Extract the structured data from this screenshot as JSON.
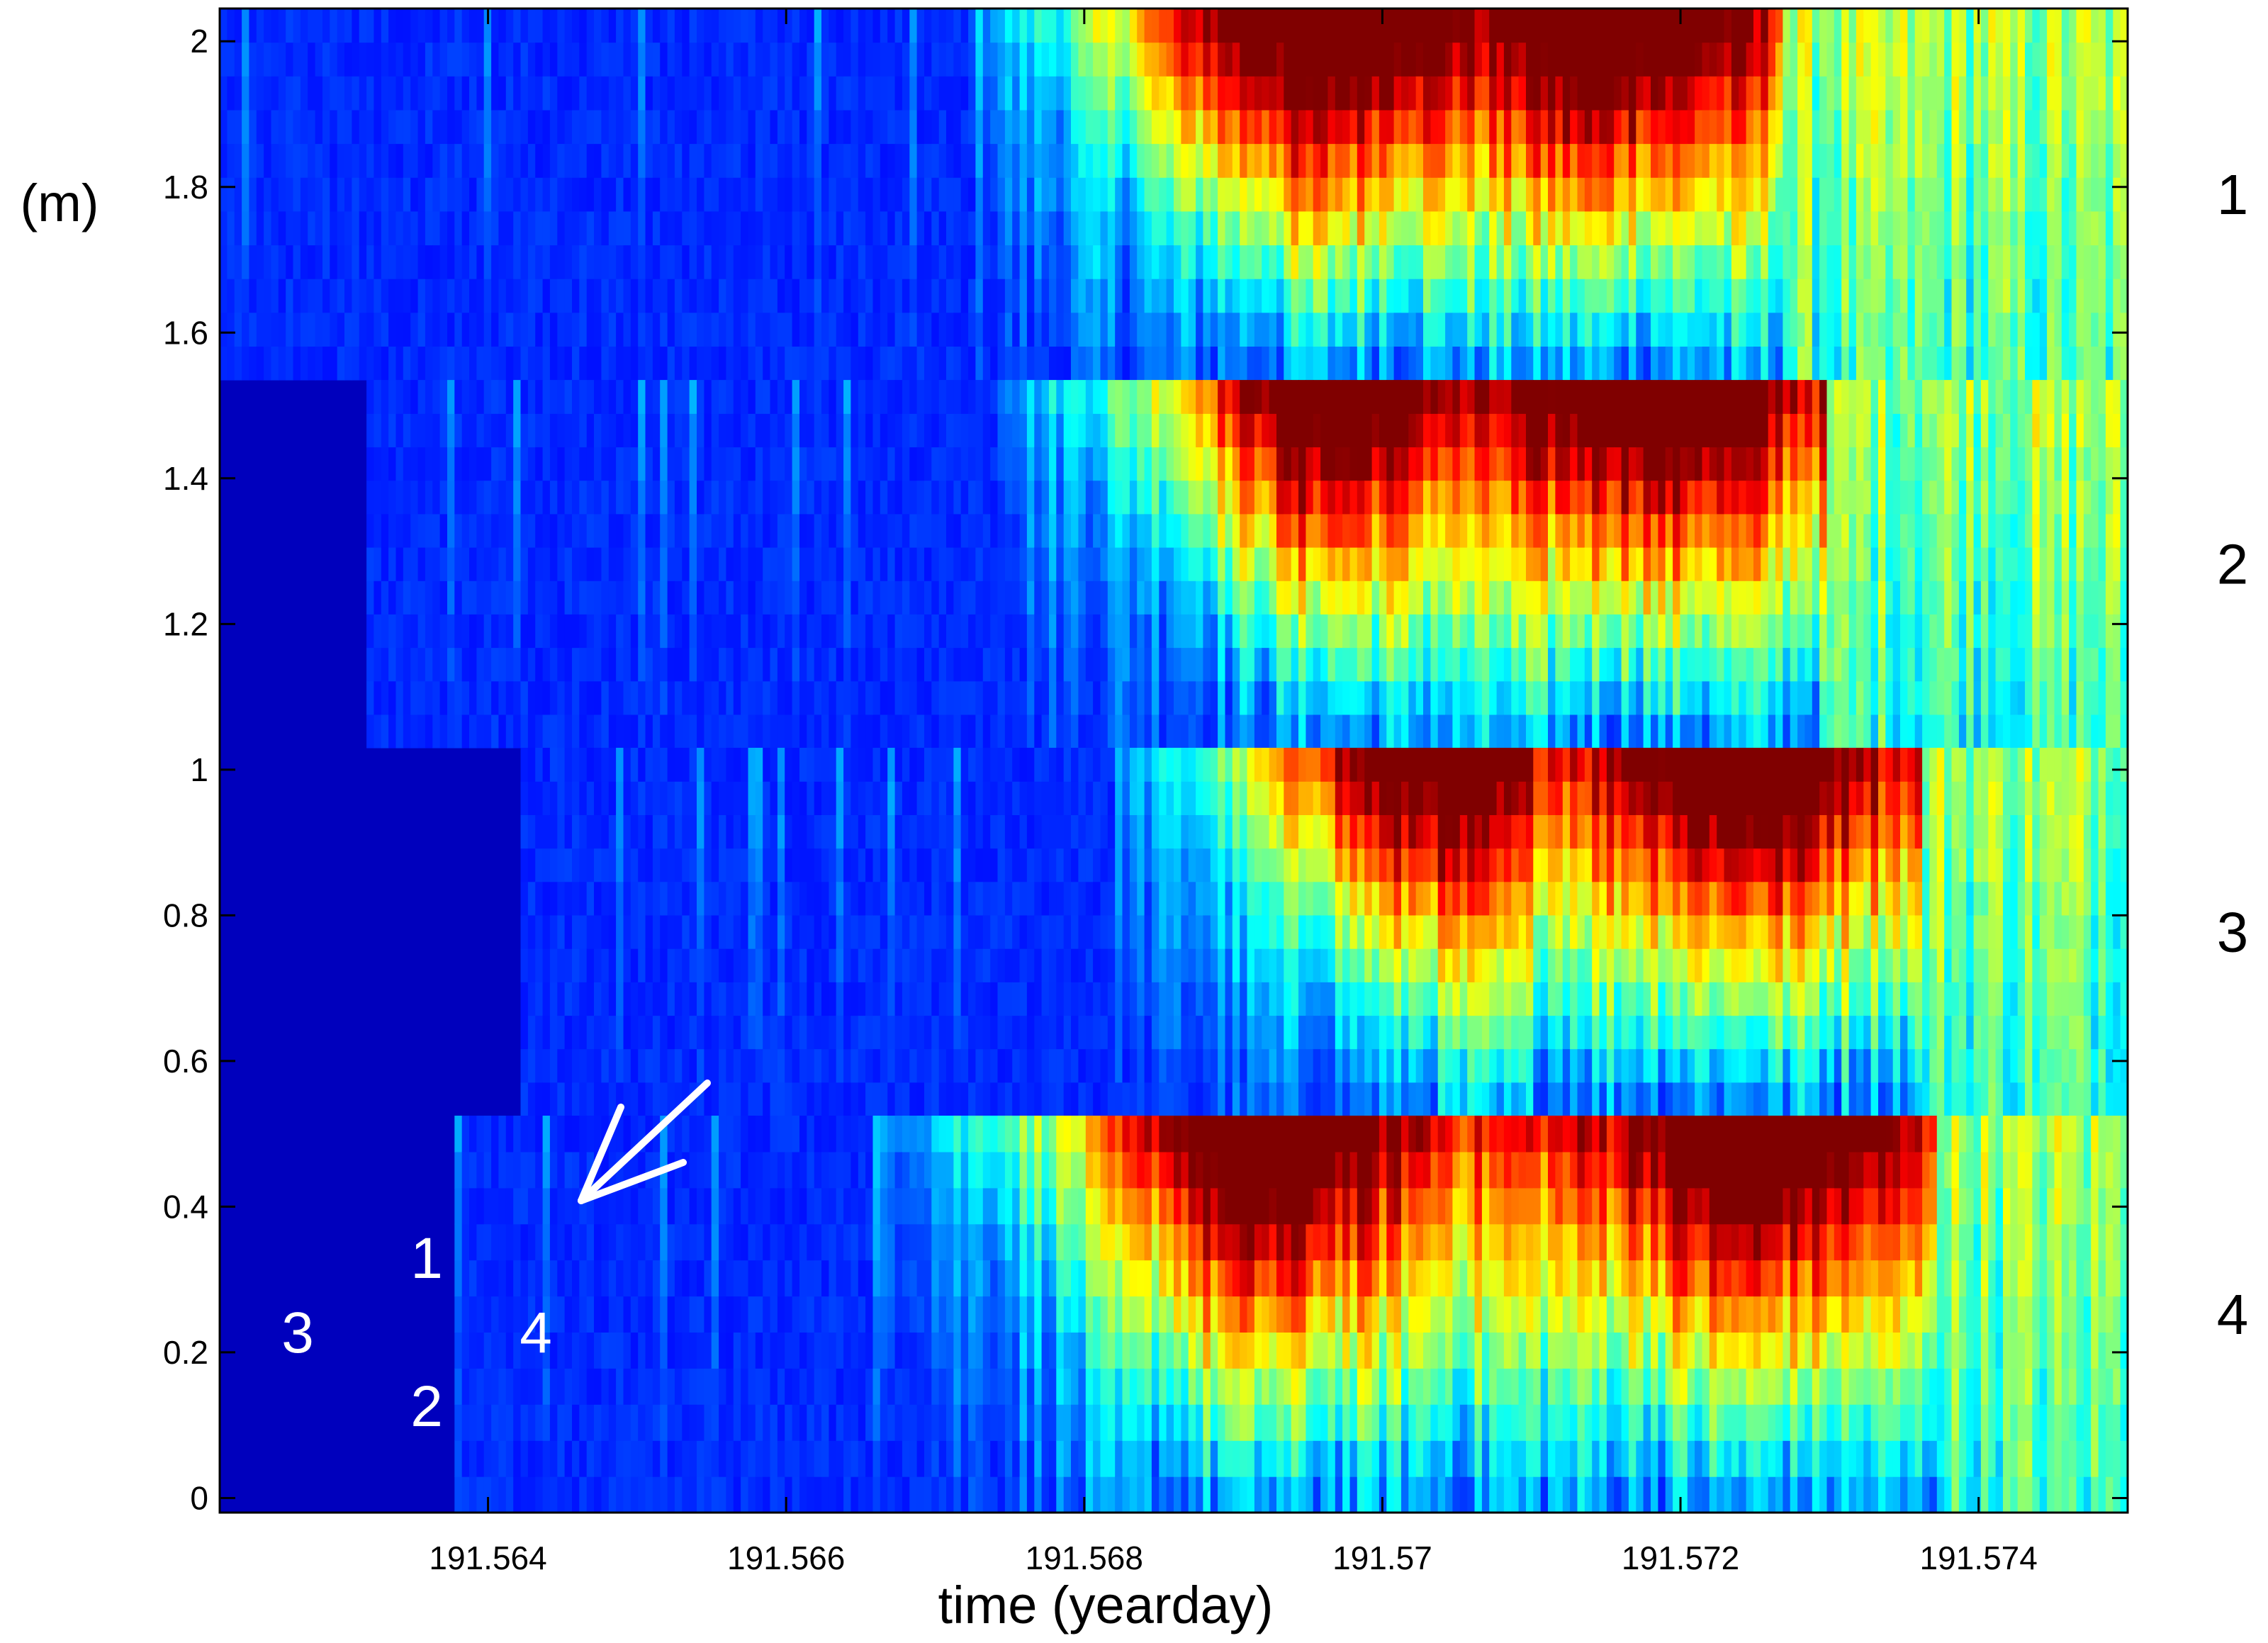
{
  "chart_data": {
    "type": "heatmap",
    "title": "",
    "xlabel": "time (yearday)",
    "ylabel": "(m)",
    "xlim": [
      191.5622,
      191.575
    ],
    "ylim": [
      -0.02,
      2.045
    ],
    "x_ticks": [
      {
        "value": 191.564,
        "label": "191.564"
      },
      {
        "value": 191.566,
        "label": "191.566"
      },
      {
        "value": 191.568,
        "label": "191.568"
      },
      {
        "value": 191.57,
        "label": "191.57"
      },
      {
        "value": 191.572,
        "label": "191.572"
      },
      {
        "value": 191.574,
        "label": "191.574"
      }
    ],
    "y_ticks": [
      {
        "value": 0,
        "label": "0"
      },
      {
        "value": 0.2,
        "label": "0.2"
      },
      {
        "value": 0.4,
        "label": "0.4"
      },
      {
        "value": 0.6,
        "label": "0.6"
      },
      {
        "value": 0.8,
        "label": "0.8"
      },
      {
        "value": 1.0,
        "label": "1"
      },
      {
        "value": 1.2,
        "label": "1.2"
      },
      {
        "value": 1.4,
        "label": "1.4"
      },
      {
        "value": 1.6,
        "label": "1.6"
      },
      {
        "value": 1.8,
        "label": "1.8"
      },
      {
        "value": 2.0,
        "label": "2"
      }
    ],
    "colormap": [
      "#00008f",
      "#0000ff",
      "#00ffff",
      "#ffff00",
      "#ff0000",
      "#800000"
    ],
    "grid": false,
    "panels": [
      {
        "label": "1",
        "y_range": [
          1.535,
          2.045
        ],
        "x_start": 191.5622,
        "onset": 191.5672,
        "peaks": [
          191.5691,
          191.5698,
          191.5715
        ]
      },
      {
        "label": "2",
        "y_range": [
          1.03,
          1.535
        ],
        "x_start": 191.5632,
        "onset": 191.5674,
        "peaks": [
          191.5695,
          191.5718
        ]
      },
      {
        "label": "3",
        "y_range": [
          0.525,
          1.03
        ],
        "x_start": 191.5642,
        "onset": 191.5682,
        "peaks": [
          191.57,
          191.5724
        ]
      },
      {
        "label": "4",
        "y_range": [
          -0.02,
          0.525
        ],
        "x_start": 191.5638,
        "onset": 191.5666,
        "peaks": [
          191.5692,
          191.5725
        ]
      }
    ],
    "annotations": [
      {
        "type": "arrow",
        "color": "#ffffff"
      },
      {
        "type": "text",
        "text": "1",
        "color": "#ffffff"
      },
      {
        "type": "text",
        "text": "3",
        "color": "#ffffff"
      },
      {
        "type": "text",
        "text": "4",
        "color": "#ffffff"
      },
      {
        "type": "text",
        "text": "2",
        "color": "#ffffff"
      }
    ]
  }
}
